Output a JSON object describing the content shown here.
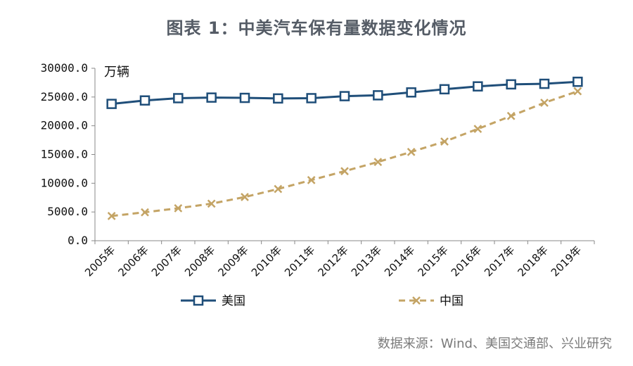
{
  "chart_data": {
    "type": "line",
    "title": "图表 1：中美汽车保有量数据变化情况",
    "unit_label": "万辆",
    "source": "数据来源：Wind、美国交通部、兴业研究",
    "categories": [
      "2005年",
      "2006年",
      "2007年",
      "2008年",
      "2009年",
      "2010年",
      "2011年",
      "2012年",
      "2013年",
      "2014年",
      "2015年",
      "2016年",
      "2017年",
      "2018年",
      "2019年"
    ],
    "y_ticks": [
      "0.0",
      "5000.0",
      "10000.0",
      "15000.0",
      "20000.0",
      "25000.0",
      "30000.0"
    ],
    "ylim": [
      0,
      30000
    ],
    "grid": false,
    "legend_position": "bottom",
    "series": [
      {
        "name": "美国",
        "color": "#1f4e79",
        "marker": "square",
        "line": "solid",
        "values": [
          23800,
          24400,
          24800,
          24900,
          24850,
          24750,
          24800,
          25150,
          25300,
          25800,
          26350,
          26850,
          27200,
          27300,
          27650
        ]
      },
      {
        "name": "中国",
        "color": "#c4a465",
        "marker": "x",
        "line": "dashed",
        "values": [
          4300,
          4950,
          5650,
          6450,
          7600,
          9000,
          10550,
          12100,
          13700,
          15450,
          17250,
          19450,
          21700,
          24000,
          26000
        ]
      }
    ]
  }
}
